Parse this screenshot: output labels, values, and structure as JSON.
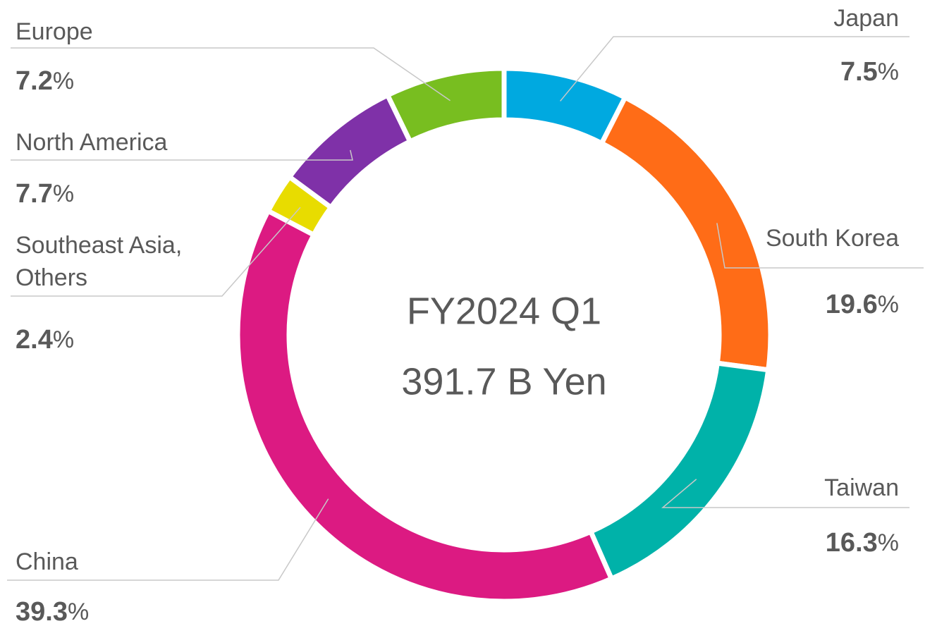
{
  "chart_data": {
    "type": "donut",
    "center_text": [
      "FY2024 Q1",
      "391.7 B Yen"
    ],
    "categories": [
      "Japan",
      "South Korea",
      "Taiwan",
      "China",
      "Southeast Asia, Others",
      "North America",
      "Europe"
    ],
    "values": [
      7.5,
      19.6,
      16.3,
      39.3,
      2.4,
      7.7,
      7.2
    ],
    "value_labels": [
      "7.5%",
      "19.6%",
      "16.3%",
      "39.3%",
      "2.4%",
      "7.7%",
      "7.2%"
    ],
    "colors": [
      "#00a9e0",
      "#ff6c17",
      "#00b2a9",
      "#dc1a82",
      "#e8dc00",
      "#7f31a8",
      "#78be20"
    ]
  }
}
